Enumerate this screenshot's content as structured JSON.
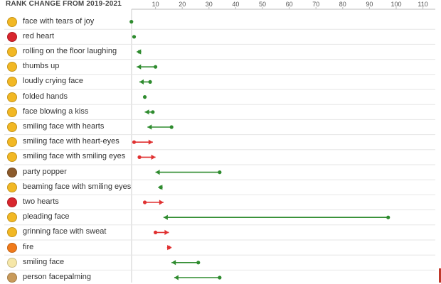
{
  "chart_data": {
    "type": "dumbbell",
    "title": "RANK CHANGE FROM 2019-2021",
    "x_ticks": [
      10,
      20,
      30,
      40,
      50,
      60,
      70,
      80,
      90,
      100,
      110
    ],
    "xlim": [
      1,
      112
    ],
    "colors": {
      "improved": "#2e8b2e",
      "worsened": "#e03131",
      "same": "#2e8b2e"
    },
    "rows": [
      {
        "label": "face with tears of joy",
        "icon": "face-with-tears-of-joy-icon",
        "emoji_color": "#f2b824",
        "y2019": 1,
        "y2021": 1
      },
      {
        "label": "red heart",
        "icon": "red-heart-icon",
        "emoji_color": "#d8262e",
        "y2019": 2,
        "y2021": 2
      },
      {
        "label": "rolling on the floor laughing",
        "icon": "rolling-on-floor-laughing-icon",
        "emoji_color": "#f2b824",
        "y2019": 4,
        "y2021": 3
      },
      {
        "label": "thumbs up",
        "icon": "thumbs-up-icon",
        "emoji_color": "#f2b824",
        "y2019": 10,
        "y2021": 3
      },
      {
        "label": "loudly crying face",
        "icon": "loudly-crying-face-icon",
        "emoji_color": "#f2b824",
        "y2019": 8,
        "y2021": 4
      },
      {
        "label": "folded hands",
        "icon": "folded-hands-icon",
        "emoji_color": "#f2b824",
        "y2019": 6,
        "y2021": 6
      },
      {
        "label": "face blowing a kiss",
        "icon": "face-blowing-kiss-icon",
        "emoji_color": "#f2b824",
        "y2019": 9,
        "y2021": 6
      },
      {
        "label": "smiling face with hearts",
        "icon": "smiling-face-with-hearts-icon",
        "emoji_color": "#f2b824",
        "y2019": 16,
        "y2021": 7
      },
      {
        "label": "smiling face with heart-eyes",
        "icon": "smiling-face-with-heart-eyes-icon",
        "emoji_color": "#f2b824",
        "y2019": 2,
        "y2021": 9
      },
      {
        "label": "smiling face with smiling eyes",
        "icon": "smiling-face-with-smiling-eyes-icon",
        "emoji_color": "#f2b824",
        "y2019": 4,
        "y2021": 10
      },
      {
        "label": "party popper",
        "icon": "party-popper-icon",
        "emoji_color": "#8b5a2b",
        "y2019": 34,
        "y2021": 10
      },
      {
        "label": "beaming face with smiling eyes",
        "icon": "beaming-face-icon",
        "emoji_color": "#f2b824",
        "y2019": 12,
        "y2021": 11
      },
      {
        "label": "two hearts",
        "icon": "two-hearts-icon",
        "emoji_color": "#d8262e",
        "y2019": 6,
        "y2021": 13
      },
      {
        "label": "pleading face",
        "icon": "pleading-face-icon",
        "emoji_color": "#f2b824",
        "y2019": 97,
        "y2021": 13
      },
      {
        "label": "grinning face with sweat",
        "icon": "grinning-face-with-sweat-icon",
        "emoji_color": "#f2b824",
        "y2019": 10,
        "y2021": 15
      },
      {
        "label": "fire",
        "icon": "fire-icon",
        "emoji_color": "#f07a1a",
        "y2019": 15,
        "y2021": 16
      },
      {
        "label": "smiling face",
        "icon": "smiling-face-icon",
        "emoji_color": "#f6e7a8",
        "y2019": 26,
        "y2021": 16
      },
      {
        "label": "person facepalming",
        "icon": "person-facepalming-icon",
        "emoji_color": "#c89a5a",
        "y2019": 34,
        "y2021": 17
      }
    ]
  }
}
